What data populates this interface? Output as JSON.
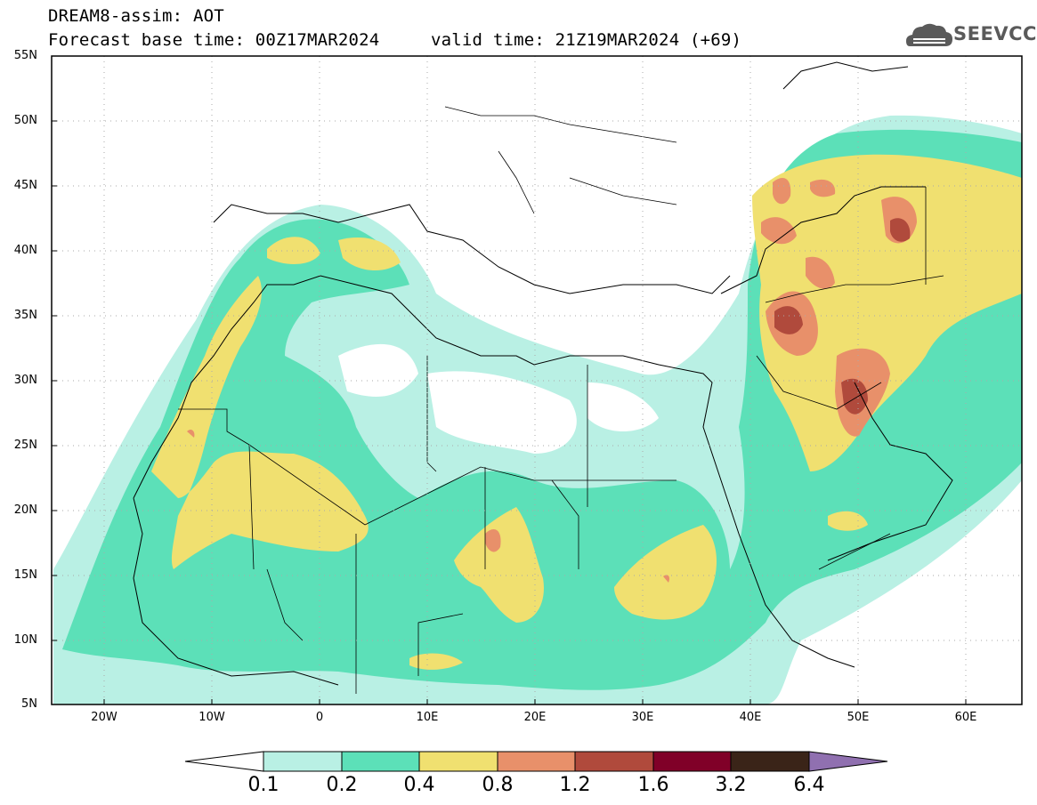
{
  "header": {
    "line1": "DREAM8-assim: AOT",
    "line2": "Forecast base time: 00Z17MAR2024",
    "line3": "valid time: 21Z19MAR2024 (+69)"
  },
  "logo": {
    "text": "SEEVCCC",
    "icon": "cloud-icon"
  },
  "map": {
    "lon_range": [
      -25,
      65
    ],
    "lat_range": [
      5,
      55
    ],
    "lat_labels": [
      "55N",
      "50N",
      "45N",
      "40N",
      "35N",
      "30N",
      "25N",
      "20N",
      "15N",
      "10N",
      "5N"
    ],
    "lon_labels": [
      "20W",
      "10W",
      "0",
      "10E",
      "20E",
      "30E",
      "40E",
      "50E",
      "60E"
    ],
    "grid": true
  },
  "colorbar": {
    "labels": [
      "0.1",
      "0.2",
      "0.4",
      "0.8",
      "1.2",
      "1.6",
      "3.2",
      "6.4"
    ],
    "colors": [
      "#ffffff",
      "#b9f0e4",
      "#5ce0b8",
      "#f0e070",
      "#e8906a",
      "#b04a3c",
      "#800028",
      "#3a2418",
      "#9070b0"
    ]
  }
}
